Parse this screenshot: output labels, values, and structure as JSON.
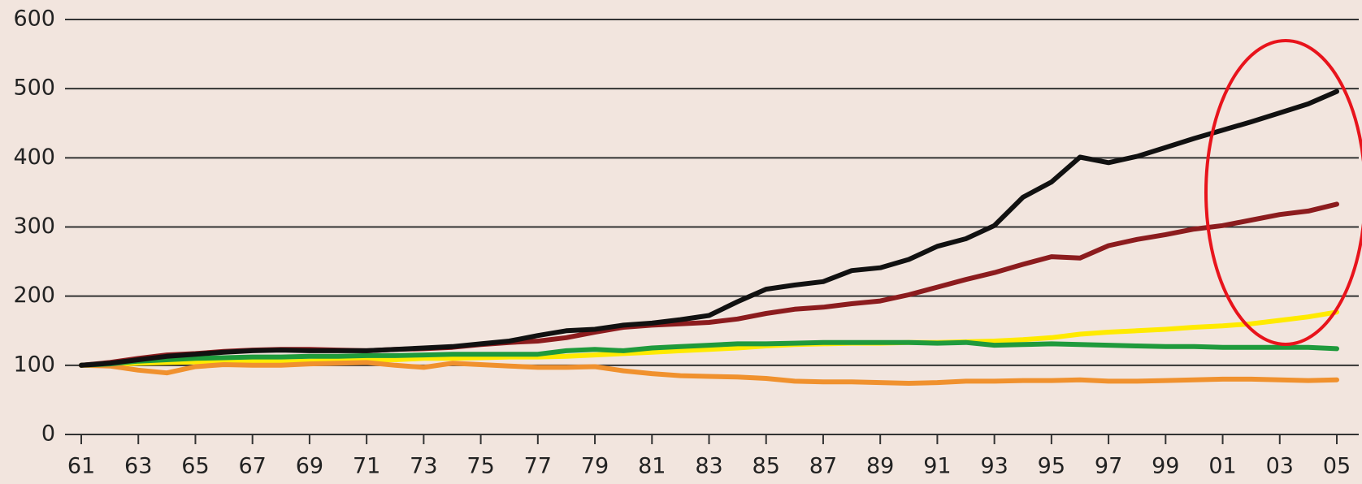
{
  "chart_data": {
    "type": "line",
    "categories": [
      "61",
      null,
      "63",
      null,
      "65",
      null,
      "67",
      null,
      "69",
      null,
      "71",
      null,
      "73",
      null,
      "75",
      null,
      "77",
      null,
      "79",
      null,
      "81",
      null,
      "83",
      null,
      "85",
      null,
      "87",
      null,
      "89",
      null,
      "91",
      null,
      "93",
      null,
      "95",
      null,
      "97",
      null,
      "99",
      null,
      "01",
      null,
      "03",
      null,
      "05"
    ],
    "series": [
      {
        "color": "#ffea00",
        "values": [
          100,
          101,
          103,
          104,
          105,
          106,
          106,
          105,
          106,
          107,
          108,
          108,
          110,
          110,
          111,
          112,
          112,
          113,
          115,
          117,
          119,
          121,
          123,
          125,
          128,
          130,
          131,
          132,
          132,
          133,
          133,
          134,
          135,
          137,
          140,
          145,
          148,
          150,
          152,
          155,
          157,
          160,
          165,
          170,
          177
        ]
      },
      {
        "color": "#f0912e",
        "values": [
          100,
          99,
          93,
          89,
          98,
          101,
          100,
          100,
          102,
          103,
          104,
          100,
          97,
          103,
          101,
          99,
          97,
          97,
          98,
          92,
          88,
          85,
          84,
          83,
          81,
          77,
          76,
          76,
          75,
          74,
          75,
          77,
          77,
          78,
          78,
          79,
          77,
          77,
          78,
          79,
          80,
          80,
          79,
          78,
          79
        ]
      },
      {
        "color": "#1f9a3c",
        "values": [
          100,
          102,
          106,
          108,
          110,
          111,
          112,
          112,
          113,
          113,
          114,
          114,
          115,
          116,
          116,
          116,
          116,
          121,
          123,
          121,
          125,
          127,
          129,
          131,
          131,
          132,
          133,
          133,
          133,
          133,
          132,
          133,
          129,
          130,
          131,
          130,
          129,
          128,
          127,
          127,
          126,
          126,
          126,
          126,
          124
        ]
      },
      {
        "color": "#8c1c1e",
        "values": [
          100,
          104,
          110,
          115,
          117,
          120,
          122,
          123,
          123,
          122,
          121,
          123,
          124,
          126,
          130,
          133,
          135,
          140,
          148,
          155,
          158,
          160,
          162,
          167,
          175,
          181,
          184,
          189,
          193,
          202,
          213,
          224,
          234,
          246,
          257,
          255,
          273,
          282,
          289,
          297,
          302,
          310,
          318,
          323,
          333
        ]
      },
      {
        "color": "#111111",
        "values": [
          100,
          103,
          108,
          113,
          116,
          119,
          121,
          122,
          121,
          121,
          121,
          123,
          125,
          127,
          131,
          135,
          143,
          150,
          152,
          158,
          161,
          166,
          172,
          192,
          210,
          216,
          221,
          237,
          241,
          253,
          272,
          283,
          302,
          343,
          365,
          401,
          393,
          402,
          415,
          428,
          440,
          452,
          465,
          478,
          496
        ]
      }
    ],
    "ylim": [
      0,
      600
    ],
    "yticks": [
      0,
      100,
      200,
      300,
      400,
      500,
      600
    ],
    "grid": true
  }
}
